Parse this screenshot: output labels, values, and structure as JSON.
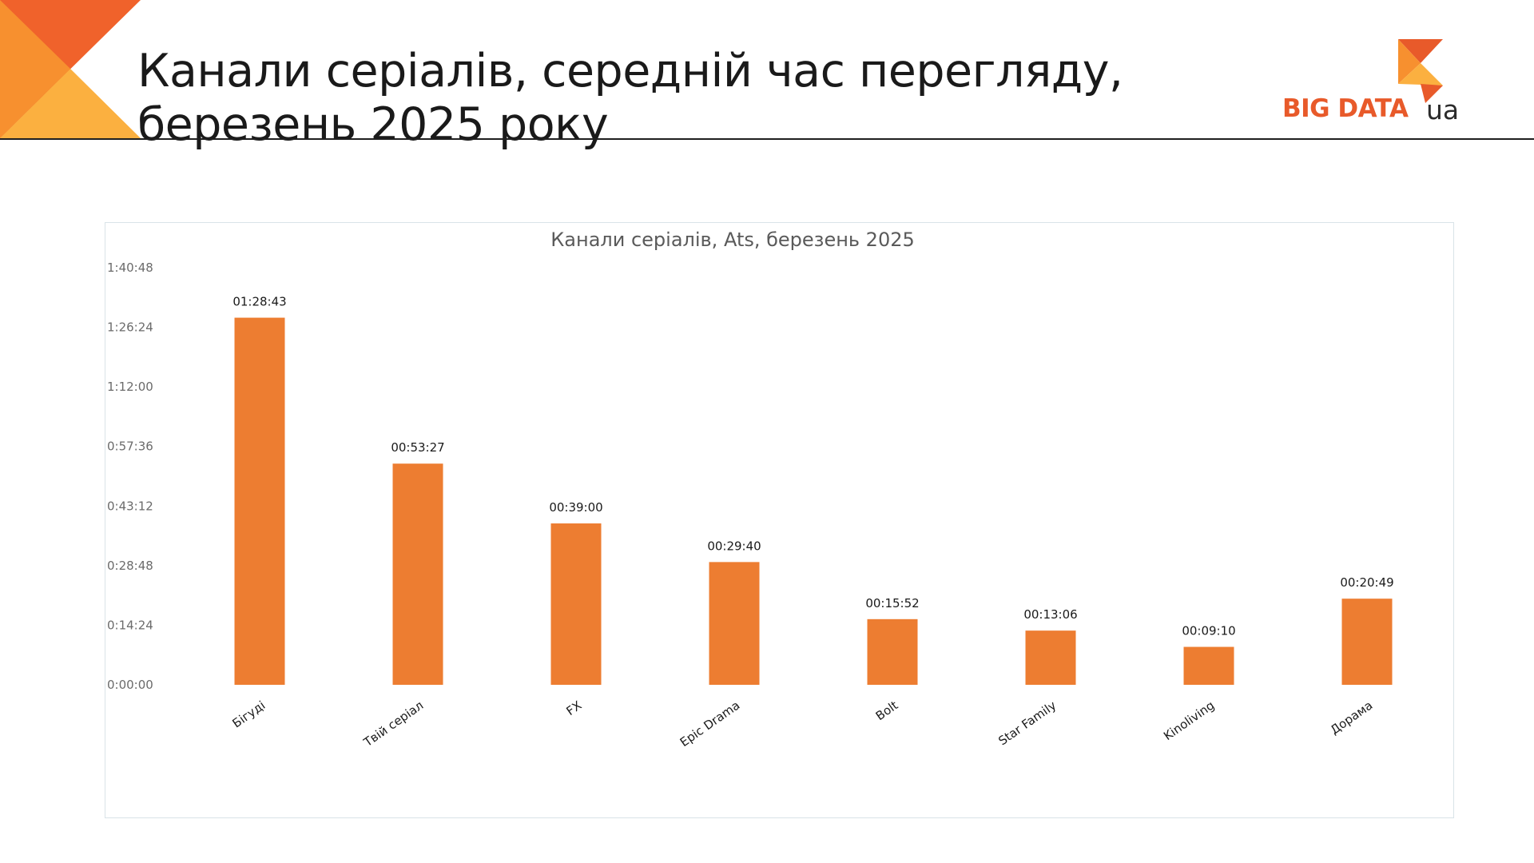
{
  "slide": {
    "title_line1": "Канали серіалів, середній час перегляду,",
    "title_line2": "березень 2025 року"
  },
  "logo": {
    "text": "BIG DATA",
    "suffix": "ua",
    "brand_color": "#e85a2a",
    "accent_color": "#f7a035"
  },
  "colors": {
    "bar": "#ed7d31",
    "corner_dark": "#f0622b",
    "corner_light": "#fbb040"
  },
  "chart_data": {
    "type": "bar",
    "title": "Канали серіалів, Ats, березень 2025",
    "categories": [
      "Бігуді",
      "Твій серіал",
      "FX",
      "Epic Drama",
      "Bolt",
      "Star Family",
      "Kinoliving",
      "Дорама"
    ],
    "values_seconds": [
      5323,
      3207,
      2340,
      1780,
      952,
      786,
      550,
      1249
    ],
    "value_labels": [
      "01:28:43",
      "00:53:27",
      "00:39:00",
      "00:29:40",
      "00:15:52",
      "00:13:06",
      "00:09:10",
      "00:20:49"
    ],
    "yticks": [
      "0:00:00",
      "0:14:24",
      "0:28:48",
      "0:43:12",
      "0:57:36",
      "1:12:00",
      "1:26:24",
      "1:40:48"
    ],
    "ytick_seconds": [
      0,
      864,
      1728,
      2592,
      3456,
      4320,
      5184,
      6048
    ],
    "ylim_seconds": [
      0,
      6048
    ],
    "xlabel": "",
    "ylabel": "",
    "grid": false,
    "legend": "none"
  }
}
